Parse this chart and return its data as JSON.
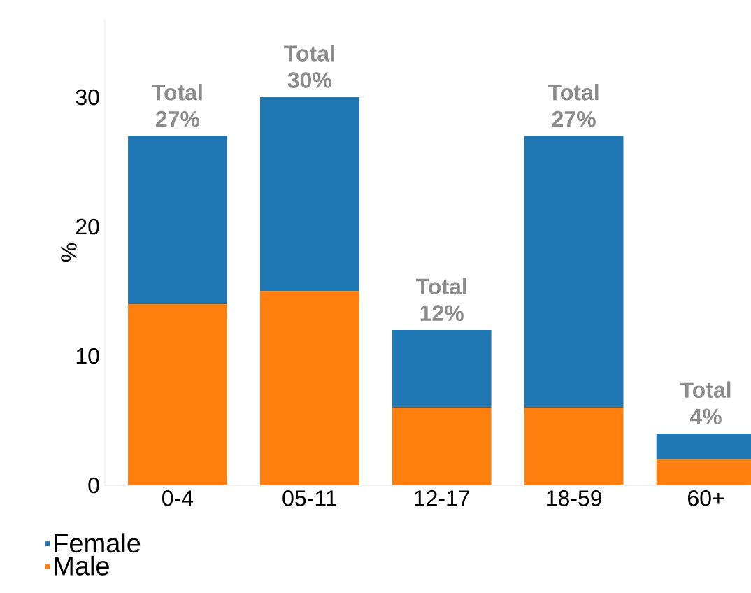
{
  "chart_data": {
    "type": "bar",
    "stacked": true,
    "ylabel": "%",
    "categories": [
      "0-4",
      "05-11",
      "12-17",
      "18-59",
      "60+"
    ],
    "series": [
      {
        "name": "Male",
        "color": "#ff7f0e",
        "values": [
          14,
          15,
          6,
          6,
          2
        ]
      },
      {
        "name": "Female",
        "color": "#1f77b4",
        "values": [
          13,
          15,
          6,
          21,
          2
        ]
      }
    ],
    "totals": [
      "Total 27%",
      "Total 30%",
      "Total 12%",
      "Total 27%",
      "Total 4%"
    ],
    "ylim": [
      0,
      36
    ],
    "yticks": [
      0,
      10,
      20,
      30
    ],
    "legend": "bottom"
  }
}
